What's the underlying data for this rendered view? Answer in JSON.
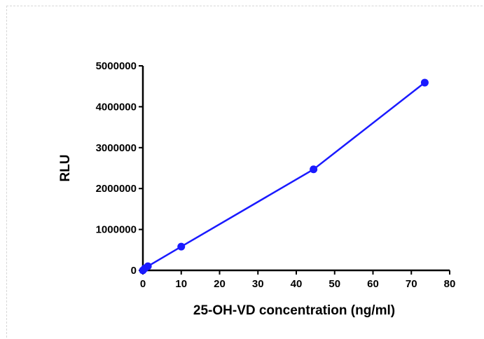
{
  "chart_data": {
    "type": "line",
    "title": "",
    "xlabel": "25-OH-VD concentration (ng/ml)",
    "ylabel": "RLU",
    "xlim": [
      0,
      80
    ],
    "ylim": [
      0,
      5000000
    ],
    "x_ticks": [
      "0",
      "10",
      "20",
      "30",
      "40",
      "50",
      "60",
      "70",
      "80"
    ],
    "y_ticks": [
      "0",
      "1000000",
      "2000000",
      "3000000",
      "4000000",
      "5000000"
    ],
    "grid": false,
    "legend": "none",
    "series": [
      {
        "color": "#1a1aff",
        "x": [
          0,
          0.5,
          1.3,
          10,
          44.5,
          73.5
        ],
        "y": [
          0,
          50000,
          100000,
          580000,
          2470000,
          4590000
        ]
      }
    ]
  }
}
